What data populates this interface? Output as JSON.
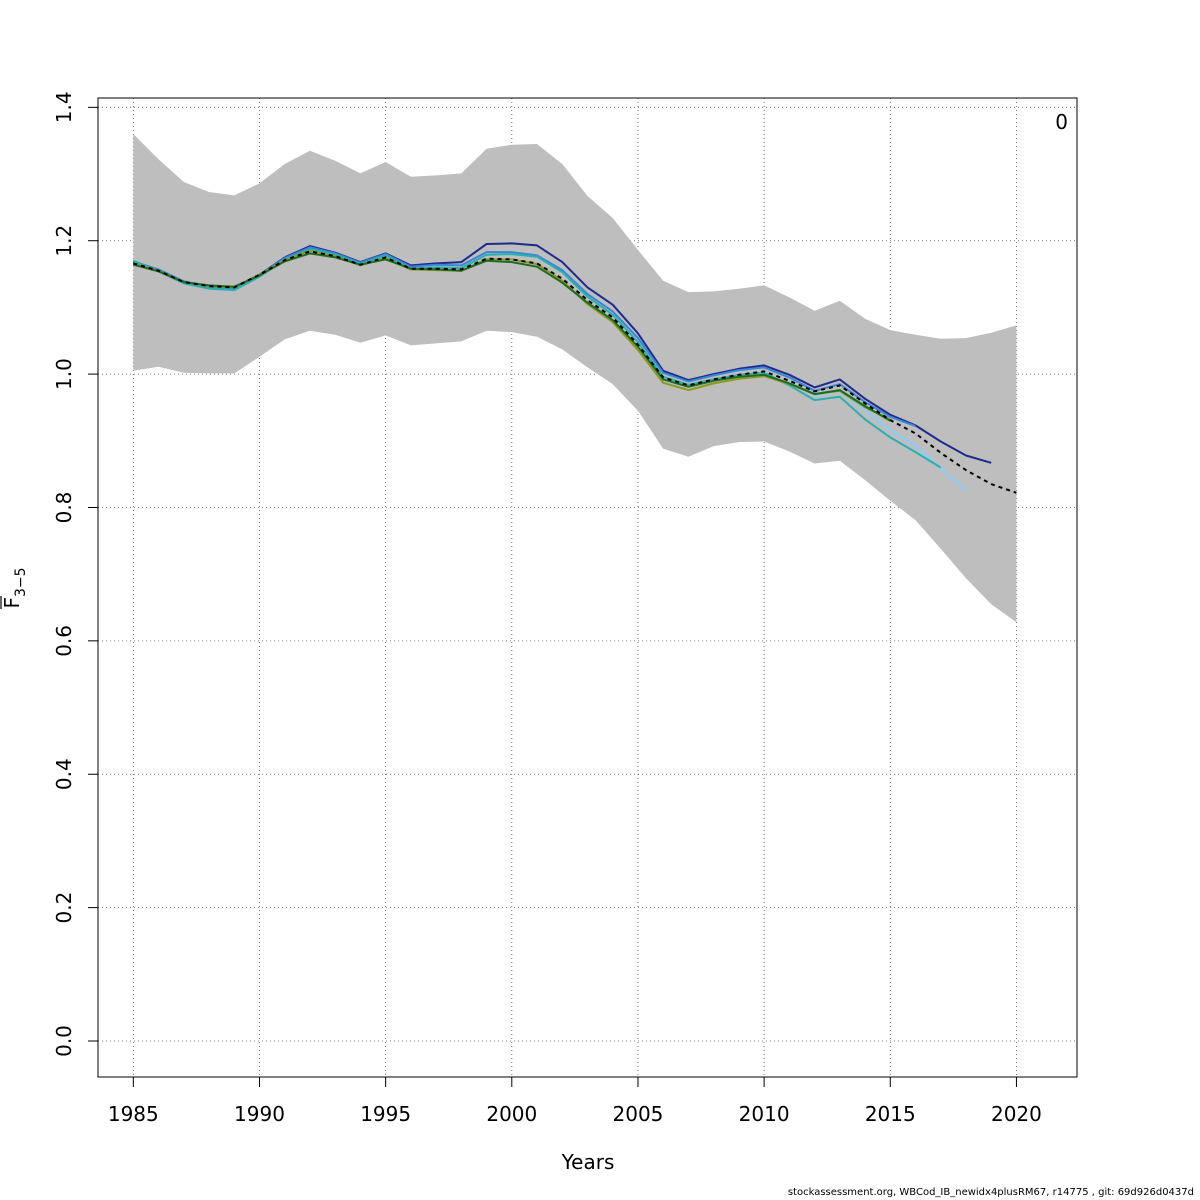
{
  "footer_text": "stockassessment.org, WBCod_IB_newidx4plusRM67, r14775 , git: 69d926d0437d",
  "corner_label": "0",
  "chart_data": {
    "type": "line",
    "xlabel": "Years",
    "ylabel_main": "F",
    "ylabel_sub": "3−5",
    "xlim": [
      1983.6,
      2022.4
    ],
    "ylim": [
      -0.054,
      1.414
    ],
    "x_ticks": [
      1985,
      1990,
      1995,
      2000,
      2005,
      2010,
      2015,
      2020
    ],
    "y_ticks": [
      0.0,
      0.2,
      0.4,
      0.6,
      0.8,
      1.0,
      1.2,
      1.4
    ],
    "y_tick_labels": [
      "0.0",
      "0.2",
      "0.4",
      "0.6",
      "0.8",
      "1.0",
      "1.2",
      "1.4"
    ],
    "grid": true,
    "band": {
      "color": "#bebebe",
      "x": [
        1985,
        1986,
        1987,
        1988,
        1989,
        1990,
        1991,
        1992,
        1993,
        1994,
        1995,
        1996,
        1997,
        1998,
        1999,
        2000,
        2001,
        2002,
        2003,
        2004,
        2005,
        2006,
        2007,
        2008,
        2009,
        2010,
        2011,
        2012,
        2013,
        2014,
        2015,
        2016,
        2017,
        2018,
        2019,
        2020
      ],
      "lower": [
        1.005,
        1.011,
        1.002,
        1.001,
        1.001,
        1.026,
        1.052,
        1.065,
        1.059,
        1.047,
        1.058,
        1.043,
        1.046,
        1.049,
        1.065,
        1.063,
        1.056,
        1.037,
        1.01,
        0.985,
        0.945,
        0.888,
        0.876,
        0.892,
        0.898,
        0.899,
        0.884,
        0.866,
        0.87,
        0.841,
        0.81,
        0.781,
        0.738,
        0.694,
        0.655,
        0.628
      ],
      "upper": [
        1.36,
        1.322,
        1.288,
        1.273,
        1.268,
        1.286,
        1.315,
        1.335,
        1.32,
        1.301,
        1.318,
        1.296,
        1.298,
        1.301,
        1.338,
        1.344,
        1.345,
        1.315,
        1.267,
        1.234,
        1.186,
        1.14,
        1.123,
        1.124,
        1.128,
        1.133,
        1.115,
        1.095,
        1.11,
        1.083,
        1.066,
        1.059,
        1.053,
        1.054,
        1.062,
        1.073
      ]
    },
    "series": [
      {
        "color": "#1f2a8c",
        "width": 2,
        "dash": "",
        "x": [
          1985,
          1986,
          1987,
          1988,
          1989,
          1990,
          1991,
          1992,
          1993,
          1994,
          1995,
          1996,
          1997,
          1998,
          1999,
          2000,
          2001,
          2002,
          2003,
          2004,
          2005,
          2006,
          2007,
          2008,
          2009,
          2010,
          2011,
          2012,
          2013,
          2014,
          2015,
          2016,
          2017,
          2018,
          2019
        ],
        "values": [
          1.168,
          1.156,
          1.139,
          1.131,
          1.13,
          1.149,
          1.175,
          1.192,
          1.182,
          1.168,
          1.181,
          1.163,
          1.166,
          1.168,
          1.195,
          1.196,
          1.193,
          1.168,
          1.13,
          1.104,
          1.061,
          1.005,
          0.991,
          1.0,
          1.008,
          1.013,
          0.999,
          0.98,
          0.992,
          0.963,
          0.939,
          0.923,
          0.899,
          0.878,
          0.867
        ]
      },
      {
        "color": "#3a86d6",
        "width": 2,
        "dash": "",
        "x": [
          1985,
          1986,
          1987,
          1988,
          1989,
          1990,
          1991,
          1992,
          1993,
          1994,
          1995,
          1996,
          1997,
          1998,
          1999,
          2000,
          2001,
          2002,
          2003,
          2004,
          2005,
          2006,
          2007,
          2008,
          2009,
          2010,
          2011,
          2012,
          2013,
          2014,
          2015,
          2016
        ],
        "values": [
          1.169,
          1.157,
          1.139,
          1.13,
          1.128,
          1.149,
          1.174,
          1.19,
          1.181,
          1.167,
          1.18,
          1.161,
          1.164,
          1.163,
          1.183,
          1.183,
          1.178,
          1.156,
          1.12,
          1.094,
          1.054,
          1.002,
          0.989,
          0.998,
          1.006,
          1.01,
          0.995,
          0.975,
          0.985,
          0.958,
          0.936,
          0.922
        ]
      },
      {
        "color": "#87cefa",
        "width": 2,
        "dash": "",
        "x": [
          2011,
          2012,
          2013,
          2014,
          2015,
          2016,
          2017,
          2018
        ],
        "values": [
          0.988,
          0.968,
          0.975,
          0.946,
          0.916,
          0.893,
          0.858,
          0.826
        ]
      },
      {
        "color": "#2ab0b0",
        "width": 2,
        "dash": "",
        "x": [
          1985,
          1986,
          1987,
          1988,
          1989,
          1990,
          1991,
          1992,
          1993,
          1994,
          1995,
          1996,
          1997,
          1998,
          1999,
          2000,
          2001,
          2002,
          2003,
          2004,
          2005,
          2006,
          2007,
          2008,
          2009,
          2010,
          2011,
          2012,
          2013,
          2014,
          2015,
          2016,
          2017
        ],
        "values": [
          1.17,
          1.154,
          1.136,
          1.128,
          1.126,
          1.146,
          1.172,
          1.187,
          1.179,
          1.165,
          1.178,
          1.158,
          1.16,
          1.159,
          1.179,
          1.18,
          1.176,
          1.153,
          1.116,
          1.089,
          1.048,
          0.996,
          0.984,
          0.992,
          0.999,
          1.002,
          0.983,
          0.961,
          0.966,
          0.932,
          0.905,
          0.883,
          0.86
        ]
      },
      {
        "color": "#8a9a1f",
        "width": 2,
        "dash": "",
        "x": [
          1985,
          1986,
          1987,
          1988,
          1989,
          1990,
          1991,
          1992,
          1993,
          1994,
          1995,
          1996,
          1997,
          1998,
          1999,
          2000,
          2001,
          2002,
          2003,
          2004,
          2005,
          2006,
          2007,
          2008,
          2009,
          2010,
          2011,
          2012,
          2013,
          2014,
          2015
        ],
        "values": [
          1.166,
          1.155,
          1.138,
          1.132,
          1.13,
          1.149,
          1.171,
          1.185,
          1.177,
          1.163,
          1.174,
          1.157,
          1.156,
          1.155,
          1.172,
          1.172,
          1.165,
          1.14,
          1.105,
          1.078,
          1.036,
          0.987,
          0.976,
          0.986,
          0.993,
          0.997,
          0.985,
          0.97,
          0.975,
          0.95,
          0.932
        ]
      },
      {
        "color": "#1f6b1f",
        "width": 2,
        "dash": "",
        "x": [
          1985,
          1986,
          1987,
          1988,
          1989,
          1990,
          1991,
          1992,
          1993,
          1994,
          1995,
          1996,
          1997,
          1998,
          1999,
          2000,
          2001,
          2002,
          2003,
          2004,
          2005,
          2006,
          2007,
          2008,
          2009,
          2010,
          2011,
          2012,
          2013,
          2014,
          2015
        ],
        "values": [
          1.164,
          1.154,
          1.138,
          1.133,
          1.131,
          1.148,
          1.169,
          1.181,
          1.175,
          1.164,
          1.172,
          1.158,
          1.157,
          1.155,
          1.17,
          1.168,
          1.161,
          1.137,
          1.107,
          1.081,
          1.041,
          0.992,
          0.981,
          0.99,
          0.996,
          0.999,
          0.986,
          0.97,
          0.976,
          0.952,
          0.93
        ]
      },
      {
        "color": "#000000",
        "width": 2,
        "dash": "4,4",
        "x": [
          1985,
          1986,
          1987,
          1988,
          1989,
          1990,
          1991,
          1992,
          1993,
          1994,
          1995,
          1996,
          1997,
          1998,
          1999,
          2000,
          2001,
          2002,
          2003,
          2004,
          2005,
          2006,
          2007,
          2008,
          2009,
          2010,
          2011,
          2012,
          2013,
          2014,
          2015,
          2016,
          2017,
          2018,
          2019,
          2020
        ],
        "values": [
          1.166,
          1.155,
          1.138,
          1.132,
          1.13,
          1.149,
          1.171,
          1.184,
          1.177,
          1.164,
          1.175,
          1.158,
          1.158,
          1.157,
          1.173,
          1.172,
          1.166,
          1.143,
          1.111,
          1.085,
          1.044,
          0.995,
          0.983,
          0.992,
          0.999,
          1.004,
          0.99,
          0.974,
          0.983,
          0.956,
          0.931,
          0.911,
          0.882,
          0.856,
          0.835,
          0.822
        ]
      }
    ]
  }
}
